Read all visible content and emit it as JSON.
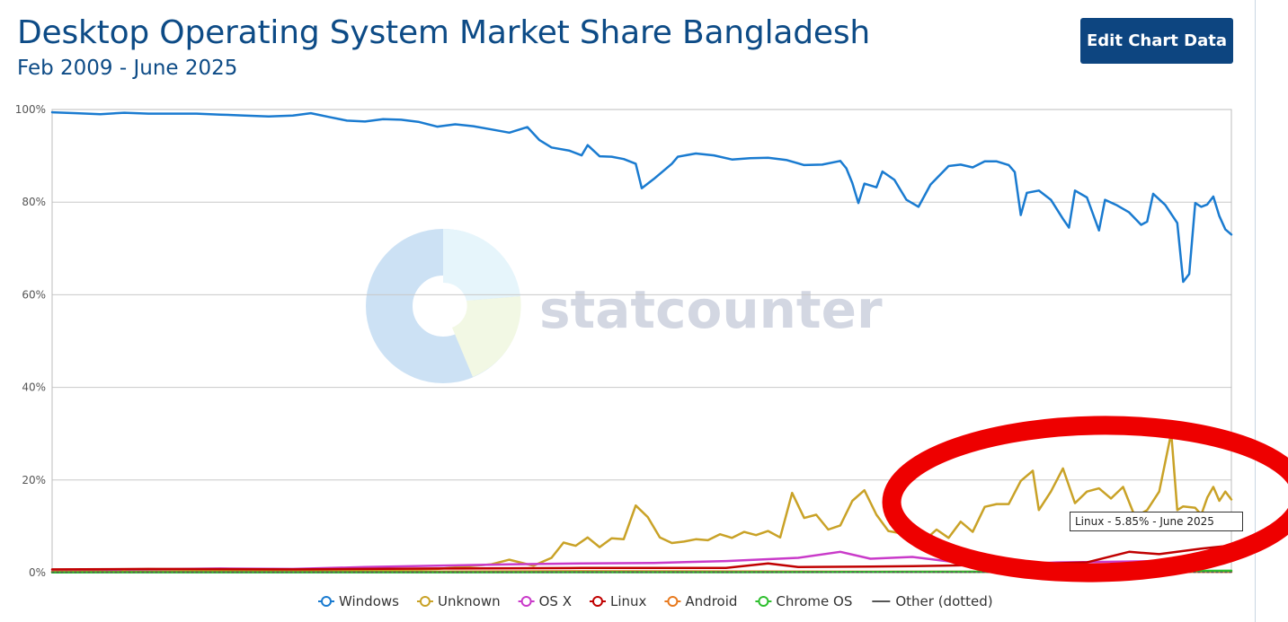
{
  "header": {
    "title": "Desktop Operating System Market Share Bangladesh",
    "subtitle": "Feb 2009 - June 2025",
    "edit_button_label": "Edit Chart Data"
  },
  "watermark": {
    "text": "statcounter"
  },
  "tooltip": {
    "text": "Linux - 5.85% - June 2025"
  },
  "colors": {
    "windows": "#1a7bd0",
    "unknown": "#c9a227",
    "osx": "#c93ac9",
    "linux": "#c00000",
    "android": "#e87a1f",
    "chromeos": "#2fbf2f",
    "other": "#555555",
    "annotation": "#ee0000",
    "title": "#0d4b86"
  },
  "chart_data": {
    "type": "line",
    "title": "Desktop Operating System Market Share Bangladesh",
    "subtitle": "Feb 2009 - June 2025",
    "x_range": [
      "2009-02",
      "2025-06"
    ],
    "ylim": [
      0,
      100
    ],
    "y_ticks": [
      "0%",
      "20%",
      "40%",
      "60%",
      "80%",
      "100%"
    ],
    "grid": true,
    "legend_position": "bottom",
    "series": [
      {
        "name": "Windows",
        "color": "#1a7bd0",
        "points": [
          [
            "2009-02",
            99.4
          ],
          [
            "2009-06",
            99.2
          ],
          [
            "2009-10",
            99.0
          ],
          [
            "2010-02",
            99.3
          ],
          [
            "2010-06",
            99.1
          ],
          [
            "2010-10",
            99.1
          ],
          [
            "2011-02",
            99.1
          ],
          [
            "2011-06",
            98.9
          ],
          [
            "2011-10",
            98.7
          ],
          [
            "2012-02",
            98.5
          ],
          [
            "2012-06",
            98.7
          ],
          [
            "2012-09",
            99.2
          ],
          [
            "2012-12",
            98.4
          ],
          [
            "2013-03",
            97.6
          ],
          [
            "2013-06",
            97.4
          ],
          [
            "2013-09",
            97.9
          ],
          [
            "2013-12",
            97.8
          ],
          [
            "2014-03",
            97.3
          ],
          [
            "2014-06",
            96.3
          ],
          [
            "2014-09",
            96.8
          ],
          [
            "2014-12",
            96.4
          ],
          [
            "2015-03",
            95.7
          ],
          [
            "2015-06",
            95.0
          ],
          [
            "2015-09",
            96.2
          ],
          [
            "2015-11",
            93.4
          ],
          [
            "2016-01",
            91.8
          ],
          [
            "2016-04",
            91.1
          ],
          [
            "2016-06",
            90.1
          ],
          [
            "2016-07",
            92.3
          ],
          [
            "2016-09",
            89.9
          ],
          [
            "2016-11",
            89.8
          ],
          [
            "2017-01",
            89.3
          ],
          [
            "2017-03",
            88.3
          ],
          [
            "2017-04",
            83.0
          ],
          [
            "2017-06",
            85.0
          ],
          [
            "2017-09",
            88.3
          ],
          [
            "2017-10",
            89.8
          ],
          [
            "2018-01",
            90.5
          ],
          [
            "2018-04",
            90.1
          ],
          [
            "2018-07",
            89.2
          ],
          [
            "2018-10",
            89.5
          ],
          [
            "2019-01",
            89.6
          ],
          [
            "2019-04",
            89.1
          ],
          [
            "2019-07",
            88.0
          ],
          [
            "2019-10",
            88.1
          ],
          [
            "2020-01",
            88.9
          ],
          [
            "2020-02",
            87.3
          ],
          [
            "2020-03",
            84.1
          ],
          [
            "2020-04",
            79.8
          ],
          [
            "2020-05",
            84.0
          ],
          [
            "2020-07",
            83.2
          ],
          [
            "2020-08",
            86.6
          ],
          [
            "2020-10",
            84.8
          ],
          [
            "2020-12",
            80.5
          ],
          [
            "2021-02",
            79.0
          ],
          [
            "2021-04",
            83.8
          ],
          [
            "2021-07",
            87.8
          ],
          [
            "2021-09",
            88.1
          ],
          [
            "2021-11",
            87.5
          ],
          [
            "2022-01",
            88.8
          ],
          [
            "2022-03",
            88.8
          ],
          [
            "2022-05",
            88.0
          ],
          [
            "2022-06",
            86.5
          ],
          [
            "2022-07",
            77.2
          ],
          [
            "2022-08",
            82.0
          ],
          [
            "2022-10",
            82.5
          ],
          [
            "2022-12",
            80.5
          ],
          [
            "2023-02",
            76.4
          ],
          [
            "2023-03",
            74.5
          ],
          [
            "2023-04",
            82.5
          ],
          [
            "2023-06",
            81.0
          ],
          [
            "2023-08",
            73.9
          ],
          [
            "2023-09",
            80.5
          ],
          [
            "2023-11",
            79.3
          ],
          [
            "2024-01",
            77.8
          ],
          [
            "2024-03",
            75.1
          ],
          [
            "2024-04",
            75.8
          ],
          [
            "2024-05",
            81.8
          ],
          [
            "2024-07",
            79.4
          ],
          [
            "2024-09",
            75.5
          ],
          [
            "2024-10",
            62.8
          ],
          [
            "2024-11",
            64.5
          ],
          [
            "2024-12",
            79.8
          ],
          [
            "2025-01",
            79.0
          ],
          [
            "2025-02",
            79.5
          ],
          [
            "2025-03",
            81.2
          ],
          [
            "2025-04",
            77.0
          ],
          [
            "2025-05",
            74.1
          ],
          [
            "2025-06",
            73.0
          ]
        ]
      },
      {
        "name": "Unknown",
        "color": "#c9a227",
        "points": [
          [
            "2009-02",
            0.2
          ],
          [
            "2010-06",
            0.3
          ],
          [
            "2012-01",
            0.4
          ],
          [
            "2013-06",
            0.5
          ],
          [
            "2014-06",
            0.8
          ],
          [
            "2015-03",
            1.8
          ],
          [
            "2015-06",
            2.8
          ],
          [
            "2015-10",
            1.5
          ],
          [
            "2016-01",
            3.2
          ],
          [
            "2016-03",
            6.5
          ],
          [
            "2016-05",
            5.8
          ],
          [
            "2016-07",
            7.6
          ],
          [
            "2016-09",
            5.5
          ],
          [
            "2016-11",
            7.4
          ],
          [
            "2017-01",
            7.2
          ],
          [
            "2017-03",
            14.5
          ],
          [
            "2017-05",
            12.0
          ],
          [
            "2017-07",
            7.6
          ],
          [
            "2017-09",
            6.4
          ],
          [
            "2017-11",
            6.7
          ],
          [
            "2018-01",
            7.2
          ],
          [
            "2018-03",
            7.0
          ],
          [
            "2018-05",
            8.3
          ],
          [
            "2018-07",
            7.5
          ],
          [
            "2018-09",
            8.8
          ],
          [
            "2018-11",
            8.1
          ],
          [
            "2019-01",
            9.0
          ],
          [
            "2019-03",
            7.6
          ],
          [
            "2019-05",
            17.2
          ],
          [
            "2019-07",
            11.8
          ],
          [
            "2019-09",
            12.5
          ],
          [
            "2019-11",
            9.3
          ],
          [
            "2020-01",
            10.2
          ],
          [
            "2020-03",
            15.5
          ],
          [
            "2020-05",
            17.8
          ],
          [
            "2020-07",
            12.5
          ],
          [
            "2020-09",
            9.0
          ],
          [
            "2020-11",
            8.5
          ],
          [
            "2021-01",
            8.2
          ],
          [
            "2021-03",
            7.0
          ],
          [
            "2021-05",
            9.3
          ],
          [
            "2021-07",
            7.5
          ],
          [
            "2021-09",
            11.0
          ],
          [
            "2021-11",
            8.8
          ],
          [
            "2022-01",
            14.2
          ],
          [
            "2022-03",
            14.8
          ],
          [
            "2022-05",
            14.8
          ],
          [
            "2022-07",
            19.8
          ],
          [
            "2022-09",
            22.0
          ],
          [
            "2022-10",
            13.5
          ],
          [
            "2022-12",
            17.5
          ],
          [
            "2023-02",
            22.5
          ],
          [
            "2023-04",
            15.0
          ],
          [
            "2023-06",
            17.5
          ],
          [
            "2023-08",
            18.2
          ],
          [
            "2023-10",
            16.0
          ],
          [
            "2023-12",
            18.5
          ],
          [
            "2024-02",
            12.0
          ],
          [
            "2024-04",
            13.5
          ],
          [
            "2024-06",
            17.5
          ],
          [
            "2024-08",
            30.2
          ],
          [
            "2024-09",
            13.5
          ],
          [
            "2024-10",
            14.3
          ],
          [
            "2024-12",
            14.0
          ],
          [
            "2025-01",
            12.5
          ],
          [
            "2025-02",
            16.2
          ],
          [
            "2025-03",
            18.5
          ],
          [
            "2025-04",
            15.5
          ],
          [
            "2025-05",
            17.5
          ],
          [
            "2025-06",
            15.8
          ]
        ]
      },
      {
        "name": "OS X",
        "color": "#c93ac9",
        "points": [
          [
            "2009-02",
            0.6
          ],
          [
            "2010-06",
            0.7
          ],
          [
            "2011-06",
            0.9
          ],
          [
            "2012-06",
            0.8
          ],
          [
            "2013-06",
            1.2
          ],
          [
            "2014-06",
            1.5
          ],
          [
            "2015-06",
            1.8
          ],
          [
            "2016-06",
            2.0
          ],
          [
            "2017-06",
            2.1
          ],
          [
            "2018-06",
            2.5
          ],
          [
            "2019-06",
            3.2
          ],
          [
            "2020-01",
            4.5
          ],
          [
            "2020-06",
            3.0
          ],
          [
            "2021-01",
            3.4
          ],
          [
            "2021-06",
            2.6
          ],
          [
            "2022-01",
            1.5
          ],
          [
            "2023-01",
            2.2
          ],
          [
            "2024-01",
            2.4
          ],
          [
            "2024-06",
            2.5
          ],
          [
            "2025-01",
            3.0
          ],
          [
            "2025-06",
            3.3
          ]
        ]
      },
      {
        "name": "Linux",
        "color": "#c00000",
        "points": [
          [
            "2009-02",
            0.7
          ],
          [
            "2010-06",
            0.8
          ],
          [
            "2012-06",
            0.7
          ],
          [
            "2014-06",
            0.9
          ],
          [
            "2016-06",
            1.0
          ],
          [
            "2018-06",
            1.0
          ],
          [
            "2019-01",
            2.0
          ],
          [
            "2019-06",
            1.2
          ],
          [
            "2020-06",
            1.3
          ],
          [
            "2021-06",
            1.5
          ],
          [
            "2022-06",
            1.8
          ],
          [
            "2023-06",
            2.2
          ],
          [
            "2024-01",
            4.5
          ],
          [
            "2024-06",
            4.0
          ],
          [
            "2025-01",
            5.2
          ],
          [
            "2025-06",
            5.85
          ]
        ]
      },
      {
        "name": "Android",
        "color": "#e87a1f",
        "points": [
          [
            "2009-02",
            0.2
          ],
          [
            "2009-10",
            0.2
          ],
          [
            "2010-01",
            0.1
          ],
          [
            "2010-02",
            0.3
          ],
          [
            "2010-03",
            0.1
          ],
          [
            "2010-06",
            0.2
          ],
          [
            "2013-06",
            0.2
          ],
          [
            "2016-06",
            0.3
          ],
          [
            "2020-06",
            0.2
          ],
          [
            "2025-06",
            0.2
          ]
        ]
      },
      {
        "name": "Chrome OS",
        "color": "#2fbf2f",
        "points": [
          [
            "2009-02",
            0.05
          ],
          [
            "2018-06",
            0.1
          ],
          [
            "2022-06",
            0.2
          ],
          [
            "2025-06",
            0.4
          ]
        ]
      },
      {
        "name": "Other (dotted)",
        "color": "#555555",
        "dotted": true,
        "points": [
          [
            "2009-02",
            0.1
          ],
          [
            "2025-06",
            0.1
          ]
        ]
      }
    ]
  }
}
